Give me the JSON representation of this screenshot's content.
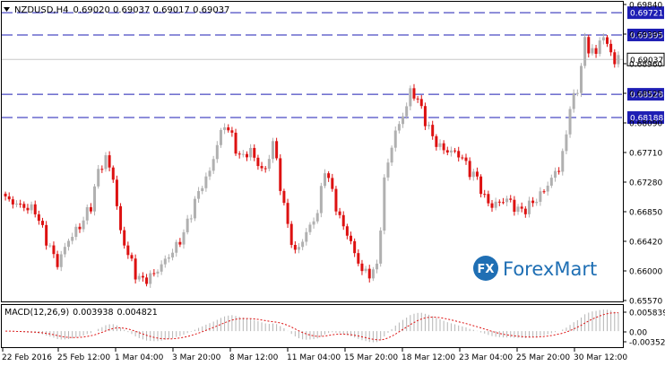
{
  "header": {
    "symbol": "NZDUSD,H4",
    "ohlc": "0.69020 0.69037 0.69017 0.69037"
  },
  "price_axis": {
    "ticks": [
      "0.69840",
      "0.69395",
      "0.68960",
      "0.68525",
      "0.68090",
      "0.67710",
      "0.67280",
      "0.66850",
      "0.66420",
      "0.66000",
      "0.65570"
    ],
    "range": [
      0.655,
      0.6988
    ]
  },
  "levels": [
    {
      "label": "0.69721",
      "value": 0.69721
    },
    {
      "label": "0.69395",
      "value": 0.69395
    },
    {
      "label": "0.68528",
      "value": 0.68528
    },
    {
      "label": "0.68188",
      "value": 0.68188
    }
  ],
  "current_price": {
    "label": "0.69037",
    "value": 0.69037
  },
  "macd": {
    "label": "MACD(12,26,9)",
    "main": "0.003938",
    "signal": "0.004821",
    "ticks": [
      "0.005839",
      "0.00",
      "-0.003522"
    ],
    "range": [
      -0.0042,
      0.0066
    ]
  },
  "time_axis": [
    "22 Feb 2016",
    "25 Feb 12:00",
    "1 Mar 04:00",
    "3 Mar 20:00",
    "8 Mar 12:00",
    "11 Mar 04:00",
    "15 Mar 20:00",
    "18 Mar 12:00",
    "23 Mar 04:00",
    "25 Mar 20:00",
    "30 Mar 12:00"
  ],
  "logo": {
    "mark": "FX",
    "text": "ForexMart"
  },
  "colors": {
    "bull": "#b0b0b0",
    "bear": "#dd1111",
    "level": "#1e1eb4",
    "macd_hist": "#b4b4b4",
    "macd_signal": "#dd1111",
    "logo": "#1f6fb4"
  },
  "chart_data": {
    "type": "candlestick",
    "title": "NZDUSD,H4",
    "close_path": [
      [
        0,
        0.67
      ],
      [
        4,
        0.669
      ],
      [
        8,
        0.6683
      ],
      [
        11,
        0.664
      ],
      [
        14,
        0.6605
      ],
      [
        17,
        0.664
      ],
      [
        20,
        0.666
      ],
      [
        23,
        0.669
      ],
      [
        25,
        0.674
      ],
      [
        27,
        0.676
      ],
      [
        29,
        0.673
      ],
      [
        31,
        0.665
      ],
      [
        33,
        0.662
      ],
      [
        35,
        0.659
      ],
      [
        37,
        0.658
      ],
      [
        40,
        0.659
      ],
      [
        43,
        0.661
      ],
      [
        46,
        0.663
      ],
      [
        48,
        0.665
      ],
      [
        50,
        0.668
      ],
      [
        52,
        0.671
      ],
      [
        55,
        0.674
      ],
      [
        57,
        0.678
      ],
      [
        59,
        0.681
      ],
      [
        61,
        0.679
      ],
      [
        63,
        0.676
      ],
      [
        66,
        0.677
      ],
      [
        68,
        0.675
      ],
      [
        70,
        0.674
      ],
      [
        72,
        0.6785
      ],
      [
        74,
        0.672
      ],
      [
        76,
        0.666
      ],
      [
        78,
        0.662
      ],
      [
        80,
        0.664
      ],
      [
        82,
        0.666
      ],
      [
        84,
        0.668
      ],
      [
        86,
        0.6745
      ],
      [
        88,
        0.671
      ],
      [
        90,
        0.667
      ],
      [
        92,
        0.665
      ],
      [
        94,
        0.662
      ],
      [
        96,
        0.6595
      ],
      [
        98,
        0.659
      ],
      [
        100,
        0.66
      ],
      [
        102,
        0.6725
      ],
      [
        104,
        0.678
      ],
      [
        106,
        0.681
      ],
      [
        108,
        0.6835
      ],
      [
        109,
        0.6858
      ],
      [
        111,
        0.6845
      ],
      [
        113,
        0.6815
      ],
      [
        115,
        0.679
      ],
      [
        117,
        0.6775
      ],
      [
        119,
        0.677
      ],
      [
        121,
        0.6768
      ],
      [
        123,
        0.676
      ],
      [
        125,
        0.674
      ],
      [
        127,
        0.673
      ],
      [
        129,
        0.67
      ],
      [
        131,
        0.669
      ],
      [
        133,
        0.6695
      ],
      [
        135,
        0.67
      ],
      [
        137,
        0.6688
      ],
      [
        139,
        0.6682
      ],
      [
        141,
        0.669
      ],
      [
        143,
        0.67
      ],
      [
        145,
        0.6712
      ],
      [
        147,
        0.673
      ],
      [
        149,
        0.6745
      ],
      [
        151,
        0.679
      ],
      [
        152,
        0.684
      ],
      [
        154,
        0.6855
      ],
      [
        155,
        0.69
      ],
      [
        156,
        0.693
      ],
      [
        157,
        0.6915
      ],
      [
        158,
        0.6922
      ],
      [
        159,
        0.691
      ],
      [
        160,
        0.693
      ],
      [
        161,
        0.694
      ],
      [
        162,
        0.6925
      ],
      [
        163,
        0.691
      ],
      [
        164,
        0.6905
      ],
      [
        165,
        0.6904
      ]
    ],
    "ylim": [
      0.655,
      0.6988
    ],
    "grid": false
  }
}
